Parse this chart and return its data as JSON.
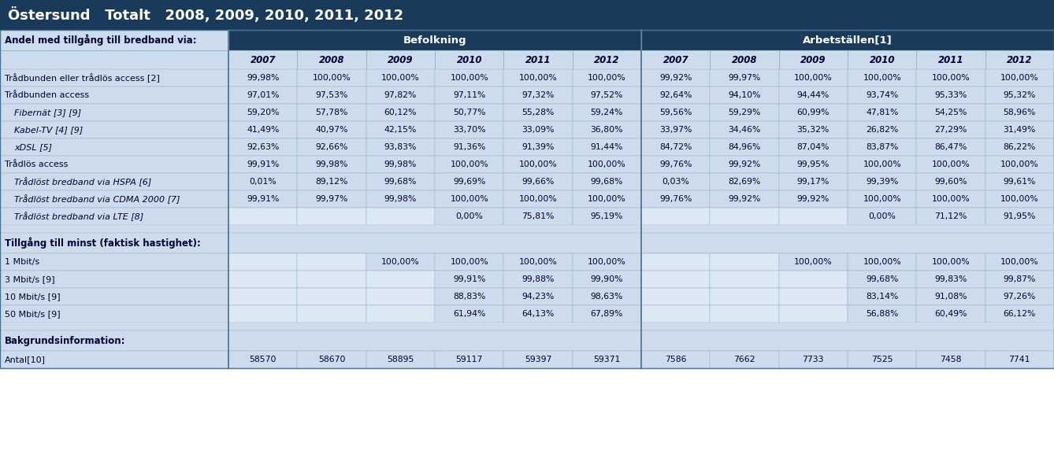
{
  "title": "Östersund   Totalt   2008, 2009, 2010, 2011, 2012",
  "title_bg": "#1a3a5c",
  "title_color": "#ffffff",
  "group_header_bg": "#1a3a5c",
  "group_header_color": "#ffffff",
  "cell_bg": "#cce0f0",
  "cell_bg_alt": "#ddeeff",
  "empty_col_bg": "#b8cfe0",
  "text_color": "#000033",
  "border_color": "#7a9ab5",
  "col_header": [
    "2007",
    "2008",
    "2009",
    "2010",
    "2011",
    "2012",
    "2007",
    "2008",
    "2009",
    "2010",
    "2011",
    "2012"
  ],
  "group_headers": [
    "Befolkning",
    "Arbetställen[1]"
  ],
  "data_rows": [
    {
      "label": "Trådbunden eller trådlös access [2]",
      "indent": false,
      "vals": [
        "99,98%",
        "100,00%",
        "100,00%",
        "100,00%",
        "100,00%",
        "100,00%",
        "99,92%",
        "99,97%",
        "100,00%",
        "100,00%",
        "100,00%",
        "100,00%"
      ]
    },
    {
      "label": "Trådbunden access",
      "indent": false,
      "vals": [
        "97,01%",
        "97,53%",
        "97,82%",
        "97,11%",
        "97,32%",
        "97,52%",
        "92,64%",
        "94,10%",
        "94,44%",
        "93,74%",
        "95,33%",
        "95,32%"
      ]
    },
    {
      "label": "Fibernät [3] [9]",
      "indent": true,
      "vals": [
        "59,20%",
        "57,78%",
        "60,12%",
        "50,77%",
        "55,28%",
        "59,24%",
        "59,56%",
        "59,29%",
        "60,99%",
        "47,81%",
        "54,25%",
        "58,96%"
      ]
    },
    {
      "label": "Kabel-TV [4] [9]",
      "indent": true,
      "vals": [
        "41,49%",
        "40,97%",
        "42,15%",
        "33,70%",
        "33,09%",
        "36,80%",
        "33,97%",
        "34,46%",
        "35,32%",
        "26,82%",
        "27,29%",
        "31,49%"
      ]
    },
    {
      "label": "xDSL [5]",
      "indent": true,
      "vals": [
        "92,63%",
        "92,66%",
        "93,83%",
        "91,36%",
        "91,39%",
        "91,44%",
        "84,72%",
        "84,96%",
        "87,04%",
        "83,87%",
        "86,47%",
        "86,22%"
      ]
    },
    {
      "label": "Trådlös access",
      "indent": false,
      "vals": [
        "99,91%",
        "99,98%",
        "99,98%",
        "100,00%",
        "100,00%",
        "100,00%",
        "99,76%",
        "99,92%",
        "99,95%",
        "100,00%",
        "100,00%",
        "100,00%"
      ]
    },
    {
      "label": "Trådlöst bredband via HSPA [6]",
      "indent": true,
      "vals": [
        "0,01%",
        "89,12%",
        "99,68%",
        "99,69%",
        "99,66%",
        "99,68%",
        "0,03%",
        "82,69%",
        "99,17%",
        "99,39%",
        "99,60%",
        "99,61%"
      ]
    },
    {
      "label": "Trådlöst bredband via CDMA 2000 [7]",
      "indent": true,
      "vals": [
        "99,91%",
        "99,97%",
        "99,98%",
        "100,00%",
        "100,00%",
        "100,00%",
        "99,76%",
        "99,92%",
        "99,92%",
        "100,00%",
        "100,00%",
        "100,00%"
      ]
    },
    {
      "label": "Trådlöst bredband via LTE [8]",
      "indent": true,
      "vals": [
        "",
        "",
        "",
        "0,00%",
        "75,81%",
        "95,19%",
        "",
        "",
        "",
        "0,00%",
        "71,12%",
        "91,95%"
      ]
    },
    {
      "label": "",
      "indent": false,
      "is_spacer": true,
      "vals": [
        "",
        "",
        "",
        "",
        "",
        "",
        "",
        "",
        "",
        "",
        "",
        ""
      ]
    },
    {
      "label": "Tillgång till minst (faktisk hastighet):",
      "indent": false,
      "is_section": true,
      "vals": [
        "",
        "",
        "",
        "",
        "",
        "",
        "",
        "",
        "",
        "",
        "",
        ""
      ]
    },
    {
      "label": "1 Mbit/s",
      "indent": false,
      "vals": [
        "",
        "",
        "100,00%",
        "100,00%",
        "100,00%",
        "100,00%",
        "",
        "",
        "100,00%",
        "100,00%",
        "100,00%",
        "100,00%"
      ]
    },
    {
      "label": "3 Mbit/s [9]",
      "indent": false,
      "vals": [
        "",
        "",
        "",
        "99,91%",
        "99,88%",
        "99,90%",
        "",
        "",
        "",
        "99,68%",
        "99,83%",
        "99,87%"
      ]
    },
    {
      "label": "10 Mbit/s [9]",
      "indent": false,
      "vals": [
        "",
        "",
        "",
        "88,83%",
        "94,23%",
        "98,63%",
        "",
        "",
        "",
        "83,14%",
        "91,08%",
        "97,26%"
      ]
    },
    {
      "label": "50 Mbit/s [9]",
      "indent": false,
      "vals": [
        "",
        "",
        "",
        "61,94%",
        "64,13%",
        "67,89%",
        "",
        "",
        "",
        "56,88%",
        "60,49%",
        "66,12%"
      ]
    },
    {
      "label": "",
      "indent": false,
      "is_spacer": true,
      "vals": [
        "",
        "",
        "",
        "",
        "",
        "",
        "",
        "",
        "",
        "",
        "",
        ""
      ]
    },
    {
      "label": "Bakgrundsinformation:",
      "indent": false,
      "is_section": true,
      "vals": [
        "",
        "",
        "",
        "",
        "",
        "",
        "",
        "",
        "",
        "",
        "",
        ""
      ]
    },
    {
      "label": "Antal[10]",
      "indent": false,
      "vals": [
        "58570",
        "58670",
        "58895",
        "59117",
        "59397",
        "59371",
        "7586",
        "7662",
        "7733",
        "7525",
        "7458",
        "7741"
      ]
    }
  ]
}
